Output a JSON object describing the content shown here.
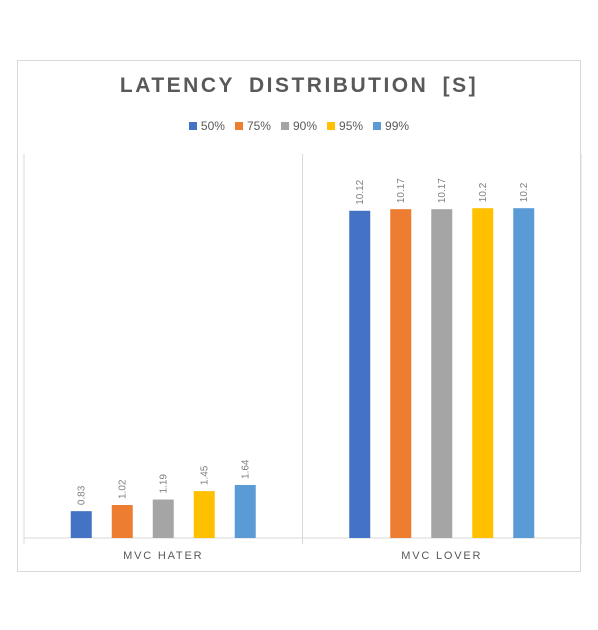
{
  "chart_data": {
    "type": "bar",
    "title": "LATENCY DISTRIBUTION [S]",
    "categories": [
      "MVC HATER",
      "MVC LOVER"
    ],
    "series": [
      {
        "name": "50%",
        "values": [
          0.83,
          10.12
        ],
        "color": "#4472c4"
      },
      {
        "name": "75%",
        "values": [
          1.02,
          10.17
        ],
        "color": "#ed7d31"
      },
      {
        "name": "90%",
        "values": [
          1.19,
          10.17
        ],
        "color": "#a5a5a5"
      },
      {
        "name": "95%",
        "values": [
          1.45,
          10.2
        ],
        "color": "#ffc000"
      },
      {
        "name": "99%",
        "values": [
          1.64,
          10.2
        ],
        "color": "#5b9bd5"
      }
    ],
    "xlabel": "",
    "ylabel": "",
    "ylim": [
      0,
      12
    ],
    "legend_position": "top",
    "grid": false,
    "category_separators": true
  }
}
